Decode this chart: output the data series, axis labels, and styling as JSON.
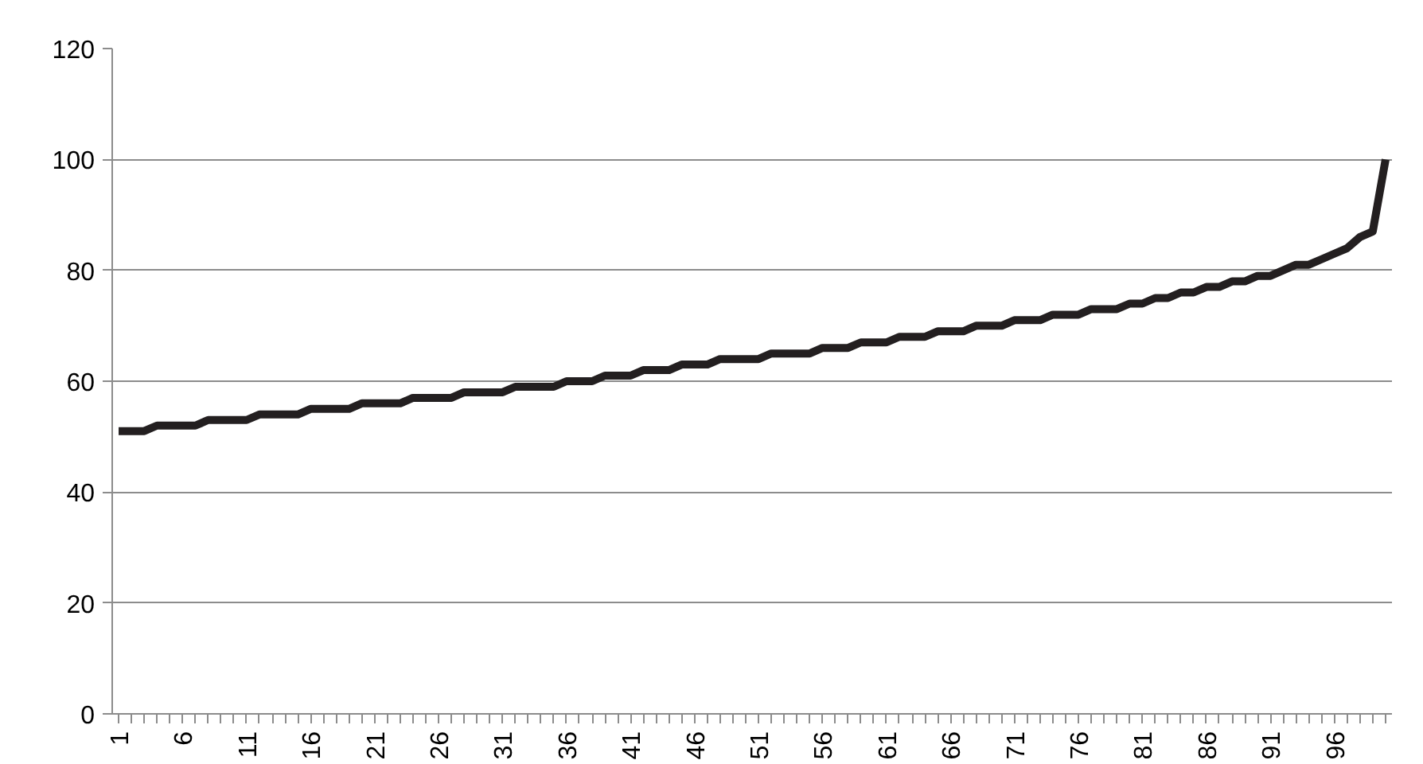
{
  "chart_data": {
    "type": "line",
    "categories": [
      "1",
      null,
      null,
      null,
      null,
      "6",
      null,
      null,
      null,
      null,
      "11",
      null,
      null,
      null,
      null,
      "16",
      null,
      null,
      null,
      null,
      "21",
      null,
      null,
      null,
      null,
      "26",
      null,
      null,
      null,
      null,
      "31",
      null,
      null,
      null,
      null,
      "36",
      null,
      null,
      null,
      null,
      "41",
      null,
      null,
      null,
      null,
      "46",
      null,
      null,
      null,
      null,
      "51",
      null,
      null,
      null,
      null,
      "56",
      null,
      null,
      null,
      null,
      "61",
      null,
      null,
      null,
      null,
      "66",
      null,
      null,
      null,
      null,
      "71",
      null,
      null,
      null,
      null,
      "76",
      null,
      null,
      null,
      null,
      "81",
      null,
      null,
      null,
      null,
      "86",
      null,
      null,
      null,
      null,
      "91",
      null,
      null,
      null,
      null,
      "96",
      null,
      null,
      null,
      null
    ],
    "series": [
      {
        "color": "#231f20",
        "values": [
          51,
          51,
          51,
          52,
          52,
          52,
          52,
          53,
          53,
          53,
          53,
          54,
          54,
          54,
          54,
          55,
          55,
          55,
          55,
          56,
          56,
          56,
          56,
          57,
          57,
          57,
          57,
          58,
          58,
          58,
          58,
          59,
          59,
          59,
          59,
          60,
          60,
          60,
          61,
          61,
          61,
          62,
          62,
          62,
          63,
          63,
          63,
          64,
          64,
          64,
          64,
          65,
          65,
          65,
          65,
          66,
          66,
          66,
          67,
          67,
          67,
          68,
          68,
          68,
          69,
          69,
          69,
          70,
          70,
          70,
          71,
          71,
          71,
          72,
          72,
          72,
          73,
          73,
          73,
          74,
          74,
          75,
          75,
          76,
          76,
          77,
          77,
          78,
          78,
          79,
          79,
          80,
          81,
          81,
          82,
          83,
          84,
          86,
          87,
          100
        ]
      }
    ],
    "ylim": [
      0,
      120
    ],
    "yticks": [
      0,
      20,
      40,
      60,
      80,
      100,
      120
    ],
    "grid": "y",
    "marker": "none",
    "line_style": "solid"
  }
}
